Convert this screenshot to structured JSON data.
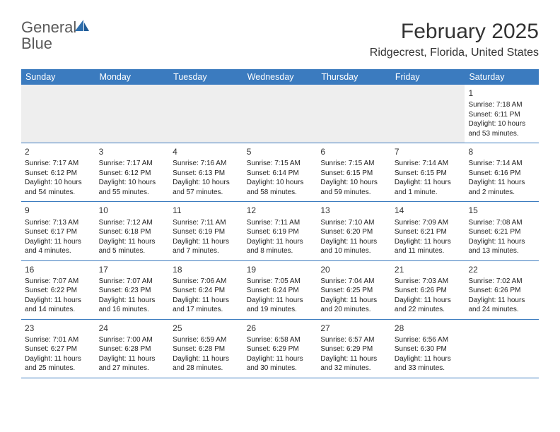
{
  "logo": {
    "text_gray": "General",
    "text_blue": "Blue"
  },
  "title": "February 2025",
  "location": "Ridgecrest, Florida, United States",
  "header_color": "#3b7bbf",
  "border_color": "#3b7bbf",
  "empty_bg": "#eeeeee",
  "weekdays": [
    "Sunday",
    "Monday",
    "Tuesday",
    "Wednesday",
    "Thursday",
    "Friday",
    "Saturday"
  ],
  "weeks": [
    [
      null,
      null,
      null,
      null,
      null,
      null,
      {
        "n": "1",
        "sr": "7:18 AM",
        "ss": "6:11 PM",
        "dl": "10 hours and 53 minutes."
      }
    ],
    [
      {
        "n": "2",
        "sr": "7:17 AM",
        "ss": "6:12 PM",
        "dl": "10 hours and 54 minutes."
      },
      {
        "n": "3",
        "sr": "7:17 AM",
        "ss": "6:12 PM",
        "dl": "10 hours and 55 minutes."
      },
      {
        "n": "4",
        "sr": "7:16 AM",
        "ss": "6:13 PM",
        "dl": "10 hours and 57 minutes."
      },
      {
        "n": "5",
        "sr": "7:15 AM",
        "ss": "6:14 PM",
        "dl": "10 hours and 58 minutes."
      },
      {
        "n": "6",
        "sr": "7:15 AM",
        "ss": "6:15 PM",
        "dl": "10 hours and 59 minutes."
      },
      {
        "n": "7",
        "sr": "7:14 AM",
        "ss": "6:15 PM",
        "dl": "11 hours and 1 minute."
      },
      {
        "n": "8",
        "sr": "7:14 AM",
        "ss": "6:16 PM",
        "dl": "11 hours and 2 minutes."
      }
    ],
    [
      {
        "n": "9",
        "sr": "7:13 AM",
        "ss": "6:17 PM",
        "dl": "11 hours and 4 minutes."
      },
      {
        "n": "10",
        "sr": "7:12 AM",
        "ss": "6:18 PM",
        "dl": "11 hours and 5 minutes."
      },
      {
        "n": "11",
        "sr": "7:11 AM",
        "ss": "6:19 PM",
        "dl": "11 hours and 7 minutes."
      },
      {
        "n": "12",
        "sr": "7:11 AM",
        "ss": "6:19 PM",
        "dl": "11 hours and 8 minutes."
      },
      {
        "n": "13",
        "sr": "7:10 AM",
        "ss": "6:20 PM",
        "dl": "11 hours and 10 minutes."
      },
      {
        "n": "14",
        "sr": "7:09 AM",
        "ss": "6:21 PM",
        "dl": "11 hours and 11 minutes."
      },
      {
        "n": "15",
        "sr": "7:08 AM",
        "ss": "6:21 PM",
        "dl": "11 hours and 13 minutes."
      }
    ],
    [
      {
        "n": "16",
        "sr": "7:07 AM",
        "ss": "6:22 PM",
        "dl": "11 hours and 14 minutes."
      },
      {
        "n": "17",
        "sr": "7:07 AM",
        "ss": "6:23 PM",
        "dl": "11 hours and 16 minutes."
      },
      {
        "n": "18",
        "sr": "7:06 AM",
        "ss": "6:24 PM",
        "dl": "11 hours and 17 minutes."
      },
      {
        "n": "19",
        "sr": "7:05 AM",
        "ss": "6:24 PM",
        "dl": "11 hours and 19 minutes."
      },
      {
        "n": "20",
        "sr": "7:04 AM",
        "ss": "6:25 PM",
        "dl": "11 hours and 20 minutes."
      },
      {
        "n": "21",
        "sr": "7:03 AM",
        "ss": "6:26 PM",
        "dl": "11 hours and 22 minutes."
      },
      {
        "n": "22",
        "sr": "7:02 AM",
        "ss": "6:26 PM",
        "dl": "11 hours and 24 minutes."
      }
    ],
    [
      {
        "n": "23",
        "sr": "7:01 AM",
        "ss": "6:27 PM",
        "dl": "11 hours and 25 minutes."
      },
      {
        "n": "24",
        "sr": "7:00 AM",
        "ss": "6:28 PM",
        "dl": "11 hours and 27 minutes."
      },
      {
        "n": "25",
        "sr": "6:59 AM",
        "ss": "6:28 PM",
        "dl": "11 hours and 28 minutes."
      },
      {
        "n": "26",
        "sr": "6:58 AM",
        "ss": "6:29 PM",
        "dl": "11 hours and 30 minutes."
      },
      {
        "n": "27",
        "sr": "6:57 AM",
        "ss": "6:29 PM",
        "dl": "11 hours and 32 minutes."
      },
      {
        "n": "28",
        "sr": "6:56 AM",
        "ss": "6:30 PM",
        "dl": "11 hours and 33 minutes."
      },
      null
    ]
  ]
}
